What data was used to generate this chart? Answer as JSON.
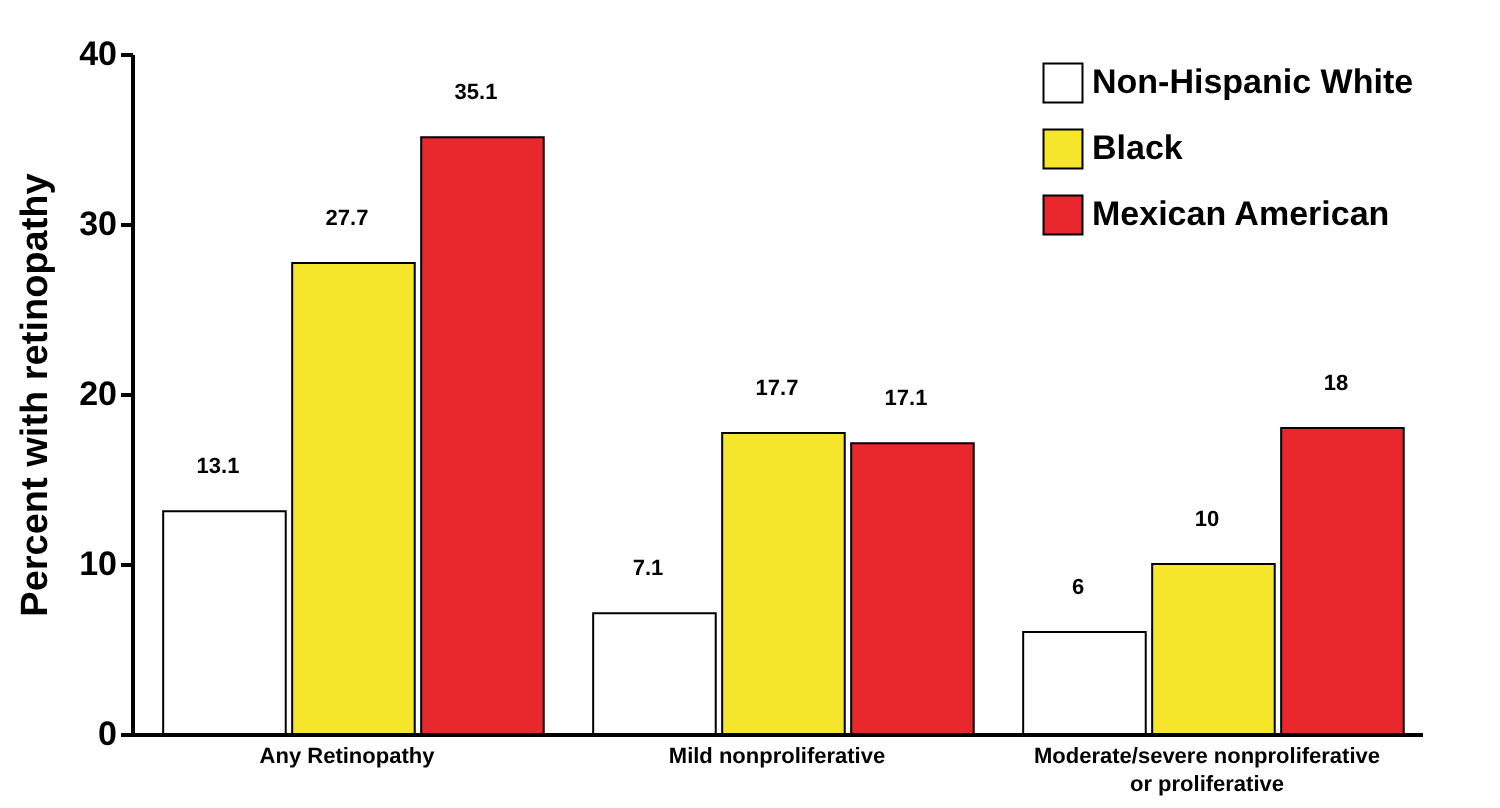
{
  "chart_data": {
    "type": "bar",
    "ylabel": "Percent with retinopathy",
    "categories": [
      "Any Retinopathy",
      "Mild nonproliferative",
      "Moderate/severe nonproliferative or proliferative"
    ],
    "series": [
      {
        "name": "Non-Hispanic White",
        "color": "#ffffff",
        "values": [
          13.1,
          7.1,
          6
        ]
      },
      {
        "name": "Black",
        "color": "#f5e62c",
        "values": [
          27.7,
          17.7,
          10
        ]
      },
      {
        "name": "Mexican American",
        "color": "#e8282c",
        "values": [
          35.1,
          17.1,
          18
        ]
      }
    ],
    "ylim": [
      0,
      40
    ],
    "yticks": [
      0,
      10,
      20,
      30,
      40
    ],
    "grid": false,
    "legend": "top right",
    "data_labels": true
  }
}
